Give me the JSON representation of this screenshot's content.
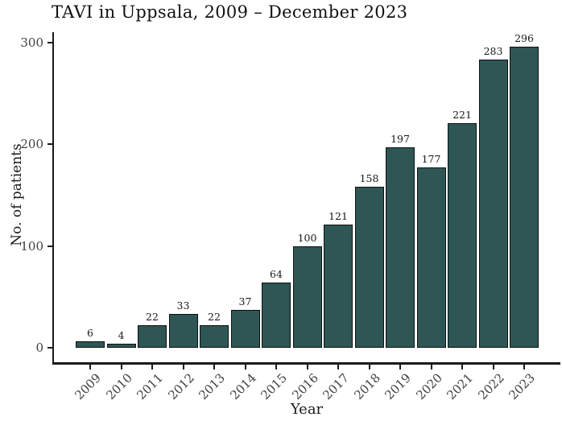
{
  "chart_data": {
    "type": "bar",
    "title": "TAVI in Uppsala, 2009 – December 2023",
    "xlabel": "Year",
    "ylabel": "No. of patients",
    "categories": [
      "2009",
      "2010",
      "2011",
      "2012",
      "2013",
      "2014",
      "2015",
      "2016",
      "2017",
      "2018",
      "2019",
      "2020",
      "2021",
      "2022",
      "2023"
    ],
    "values": [
      6,
      4,
      22,
      33,
      22,
      37,
      64,
      100,
      121,
      158,
      197,
      177,
      221,
      283,
      296
    ],
    "yticks": [
      0,
      100,
      200,
      300
    ],
    "ylim": [
      0,
      310
    ],
    "grid": false,
    "legend": null,
    "bar_labels_shown": true,
    "colors": {
      "bar_fill": "#2e5654",
      "bar_border": "#0f0f0f",
      "axis": "#1a1a1a",
      "tick_text": "#404040",
      "title_text": "#111111",
      "background": "#ffffff"
    }
  }
}
